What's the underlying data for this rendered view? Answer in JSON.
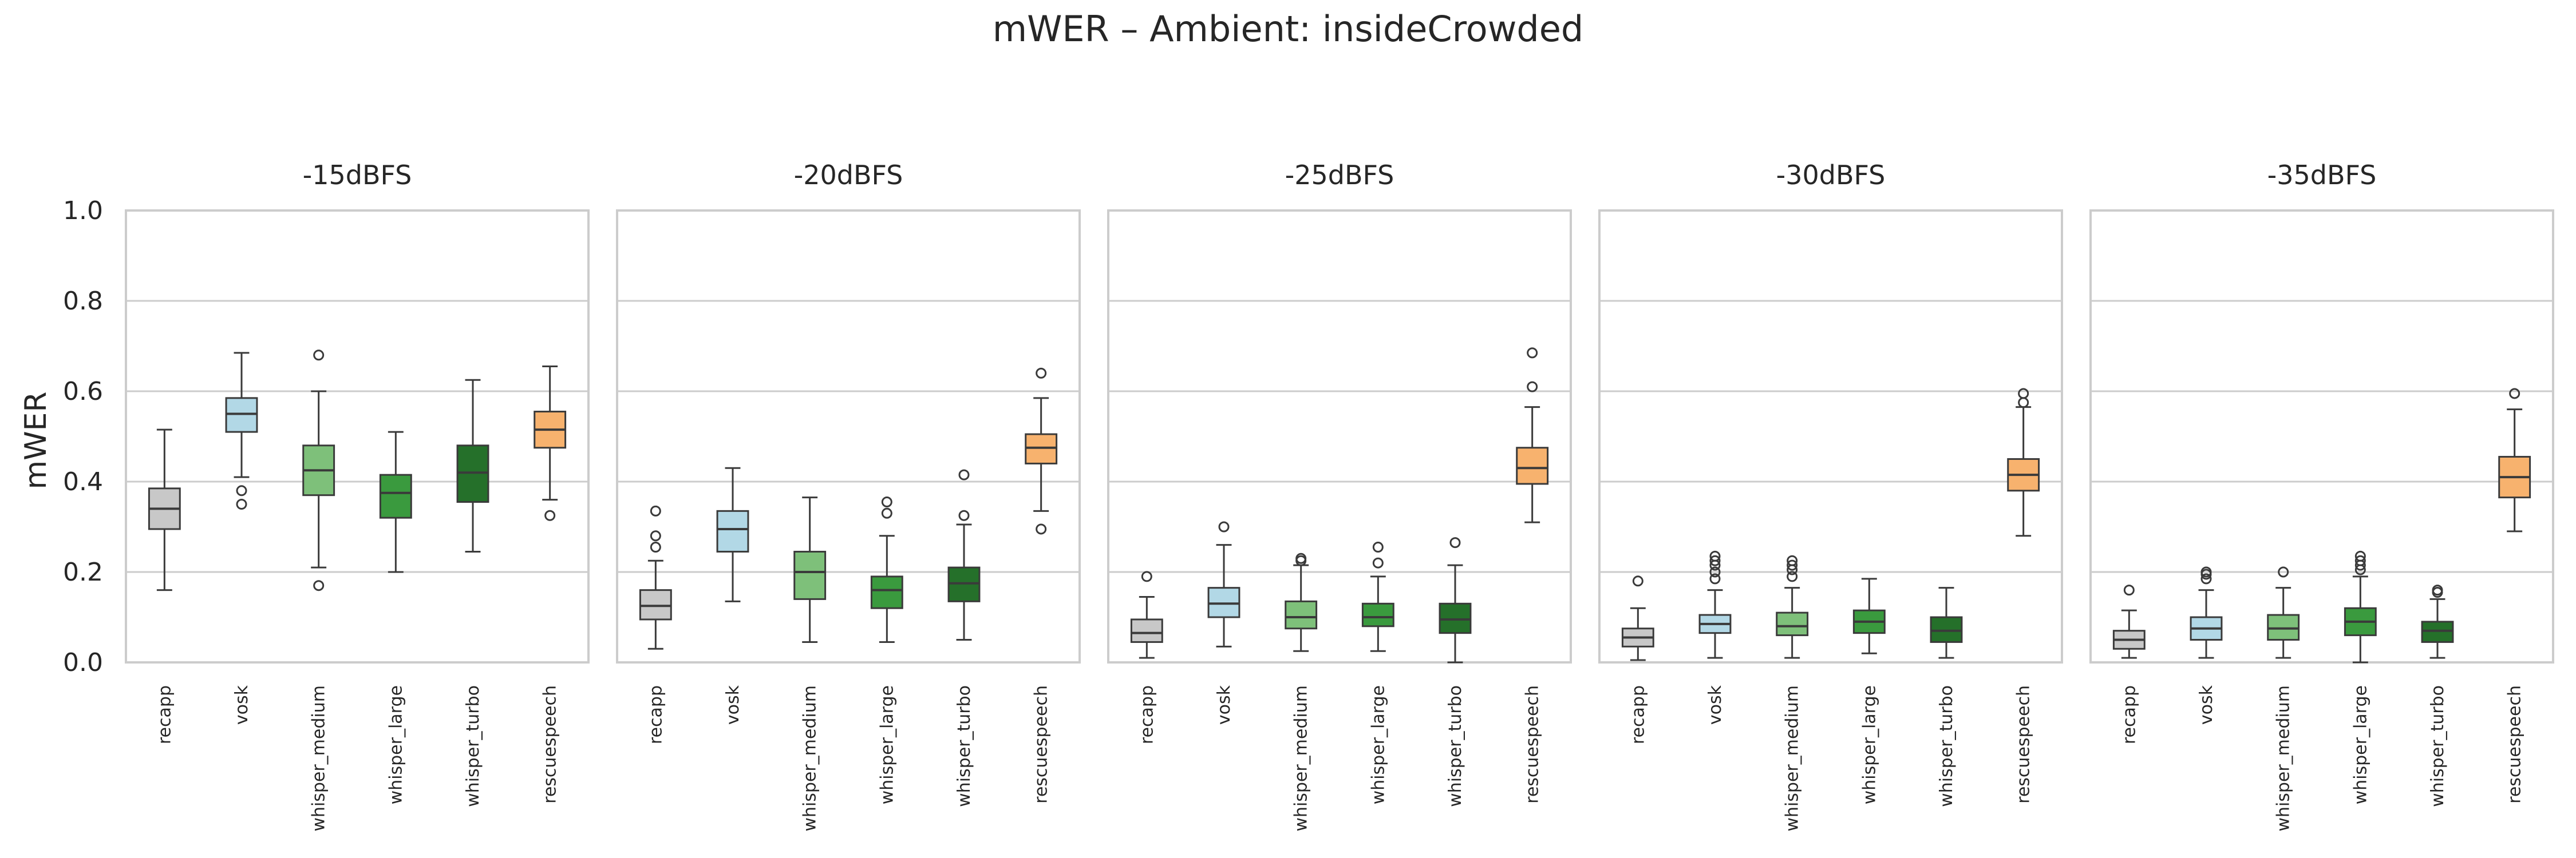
{
  "title": "mWER – Ambient: insideCrowded",
  "chart_data": {
    "type": "box",
    "title": "mWER – Ambient: insideCrowded",
    "ylabel": "mWER",
    "ylim": [
      0.0,
      1.0
    ],
    "yticks": [
      "0.0",
      "0.2",
      "0.4",
      "0.6",
      "0.8",
      "1.0"
    ],
    "grid": true,
    "categories": [
      "recapp",
      "vosk",
      "whisper_medium",
      "whisper_large",
      "whisper_turbo",
      "rescuespeech"
    ],
    "colors": [
      "#c8c8c8",
      "#b2d8e6",
      "#7ec07a",
      "#3a9a3e",
      "#25702a",
      "#f7b26e"
    ],
    "panels": [
      {
        "title": "-15dBFS",
        "boxes": [
          {
            "whislo": 0.16,
            "q1": 0.295,
            "med": 0.34,
            "q3": 0.385,
            "whishi": 0.515,
            "fliers": []
          },
          {
            "whislo": 0.41,
            "q1": 0.51,
            "med": 0.55,
            "q3": 0.585,
            "whishi": 0.685,
            "fliers": [
              0.38,
              0.35
            ]
          },
          {
            "whislo": 0.21,
            "q1": 0.37,
            "med": 0.425,
            "q3": 0.48,
            "whishi": 0.6,
            "fliers": [
              0.68,
              0.17
            ]
          },
          {
            "whislo": 0.2,
            "q1": 0.32,
            "med": 0.375,
            "q3": 0.415,
            "whishi": 0.51,
            "fliers": []
          },
          {
            "whislo": 0.245,
            "q1": 0.355,
            "med": 0.42,
            "q3": 0.48,
            "whishi": 0.625,
            "fliers": []
          },
          {
            "whislo": 0.36,
            "q1": 0.475,
            "med": 0.515,
            "q3": 0.555,
            "whishi": 0.655,
            "fliers": [
              0.325
            ]
          }
        ]
      },
      {
        "title": "-20dBFS",
        "boxes": [
          {
            "whislo": 0.03,
            "q1": 0.095,
            "med": 0.125,
            "q3": 0.16,
            "whishi": 0.225,
            "fliers": [
              0.255,
              0.28,
              0.335
            ]
          },
          {
            "whislo": 0.135,
            "q1": 0.245,
            "med": 0.295,
            "q3": 0.335,
            "whishi": 0.43,
            "fliers": []
          },
          {
            "whislo": 0.045,
            "q1": 0.14,
            "med": 0.2,
            "q3": 0.245,
            "whishi": 0.365,
            "fliers": []
          },
          {
            "whislo": 0.045,
            "q1": 0.12,
            "med": 0.16,
            "q3": 0.19,
            "whishi": 0.28,
            "fliers": [
              0.33,
              0.355
            ]
          },
          {
            "whislo": 0.05,
            "q1": 0.135,
            "med": 0.175,
            "q3": 0.21,
            "whishi": 0.305,
            "fliers": [
              0.325,
              0.415
            ]
          },
          {
            "whislo": 0.335,
            "q1": 0.44,
            "med": 0.475,
            "q3": 0.505,
            "whishi": 0.585,
            "fliers": [
              0.64,
              0.295
            ]
          }
        ]
      },
      {
        "title": "-25dBFS",
        "boxes": [
          {
            "whislo": 0.01,
            "q1": 0.045,
            "med": 0.065,
            "q3": 0.095,
            "whishi": 0.145,
            "fliers": [
              0.19
            ]
          },
          {
            "whislo": 0.035,
            "q1": 0.1,
            "med": 0.13,
            "q3": 0.165,
            "whishi": 0.26,
            "fliers": [
              0.3
            ]
          },
          {
            "whislo": 0.025,
            "q1": 0.075,
            "med": 0.1,
            "q3": 0.135,
            "whishi": 0.215,
            "fliers": [
              0.225,
              0.23
            ]
          },
          {
            "whislo": 0.025,
            "q1": 0.08,
            "med": 0.1,
            "q3": 0.13,
            "whishi": 0.19,
            "fliers": [
              0.22,
              0.255
            ]
          },
          {
            "whislo": 0.0,
            "q1": 0.065,
            "med": 0.095,
            "q3": 0.13,
            "whishi": 0.215,
            "fliers": [
              0.265
            ]
          },
          {
            "whislo": 0.31,
            "q1": 0.395,
            "med": 0.43,
            "q3": 0.475,
            "whishi": 0.565,
            "fliers": [
              0.61,
              0.685
            ]
          }
        ]
      },
      {
        "title": "-30dBFS",
        "boxes": [
          {
            "whislo": 0.005,
            "q1": 0.035,
            "med": 0.055,
            "q3": 0.075,
            "whishi": 0.12,
            "fliers": [
              0.18
            ]
          },
          {
            "whislo": 0.01,
            "q1": 0.065,
            "med": 0.085,
            "q3": 0.105,
            "whishi": 0.16,
            "fliers": [
              0.185,
              0.2,
              0.215,
              0.225,
              0.235
            ]
          },
          {
            "whislo": 0.01,
            "q1": 0.06,
            "med": 0.08,
            "q3": 0.11,
            "whishi": 0.165,
            "fliers": [
              0.19,
              0.205,
              0.215,
              0.225
            ]
          },
          {
            "whislo": 0.02,
            "q1": 0.065,
            "med": 0.09,
            "q3": 0.115,
            "whishi": 0.185,
            "fliers": []
          },
          {
            "whislo": 0.01,
            "q1": 0.045,
            "med": 0.07,
            "q3": 0.1,
            "whishi": 0.165,
            "fliers": []
          },
          {
            "whislo": 0.28,
            "q1": 0.38,
            "med": 0.415,
            "q3": 0.45,
            "whishi": 0.565,
            "fliers": [
              0.575,
              0.595
            ]
          }
        ]
      },
      {
        "title": "-35dBFS",
        "boxes": [
          {
            "whislo": 0.01,
            "q1": 0.03,
            "med": 0.05,
            "q3": 0.07,
            "whishi": 0.115,
            "fliers": [
              0.16
            ]
          },
          {
            "whislo": 0.01,
            "q1": 0.05,
            "med": 0.075,
            "q3": 0.1,
            "whishi": 0.16,
            "fliers": [
              0.185,
              0.195,
              0.2
            ]
          },
          {
            "whislo": 0.01,
            "q1": 0.05,
            "med": 0.075,
            "q3": 0.105,
            "whishi": 0.165,
            "fliers": [
              0.2
            ]
          },
          {
            "whislo": 0.0,
            "q1": 0.06,
            "med": 0.09,
            "q3": 0.12,
            "whishi": 0.19,
            "fliers": [
              0.205,
              0.215,
              0.225,
              0.235
            ]
          },
          {
            "whislo": 0.01,
            "q1": 0.045,
            "med": 0.07,
            "q3": 0.09,
            "whishi": 0.14,
            "fliers": [
              0.155,
              0.16
            ]
          },
          {
            "whislo": 0.29,
            "q1": 0.365,
            "med": 0.41,
            "q3": 0.455,
            "whishi": 0.56,
            "fliers": [
              0.595
            ]
          }
        ]
      }
    ]
  }
}
